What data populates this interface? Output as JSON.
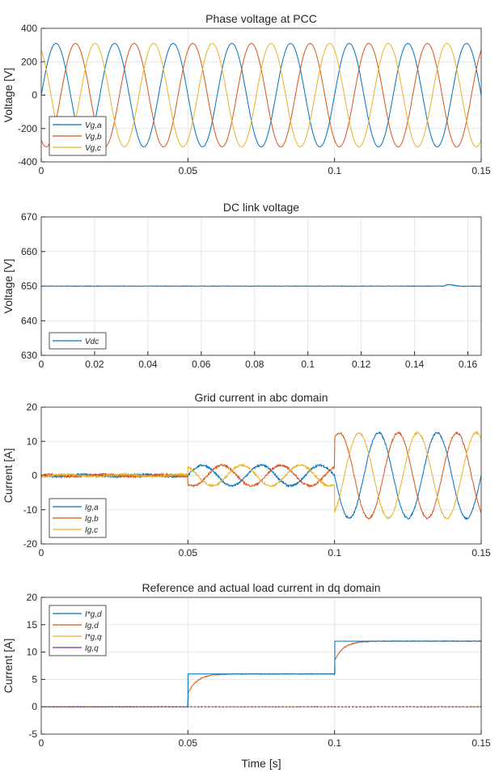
{
  "chart_data": [
    {
      "type": "line",
      "title": "Phase voltage at PCC",
      "ylabel": "Voltage [V]",
      "xlabel": "",
      "xlim": [
        0,
        0.15
      ],
      "ylim": [
        -400,
        400
      ],
      "xticks": [
        0,
        0.05,
        0.1,
        0.15
      ],
      "xtick_labels": [
        "0",
        "0.05",
        "0.1",
        "0.15"
      ],
      "yticks": [
        400,
        200,
        0,
        -200,
        -400
      ],
      "ytick_labels": [
        "400",
        "200",
        "0",
        "-200",
        "-400"
      ],
      "grid": true,
      "legend_position": "bottom-left",
      "series": [
        {
          "name": "V_g,a",
          "label": "Vg,a",
          "color": "#0072BD",
          "model": "sine",
          "amplitude": 310,
          "frequency_hz": 50,
          "phase_deg": 0
        },
        {
          "name": "V_g,b",
          "label": "Vg,b",
          "color": "#D95319",
          "model": "sine",
          "amplitude": 310,
          "frequency_hz": 50,
          "phase_deg": -120
        },
        {
          "name": "V_g,c",
          "label": "Vg,c",
          "color": "#EDB120",
          "model": "sine",
          "amplitude": 310,
          "frequency_hz": 50,
          "phase_deg": 120
        }
      ]
    },
    {
      "type": "line",
      "title": "DC link voltage",
      "ylabel": "Voltage [V]",
      "xlabel": "",
      "xlim": [
        0,
        0.165
      ],
      "ylim": [
        630,
        670
      ],
      "xticks": [
        0,
        0.02,
        0.04,
        0.06,
        0.08,
        0.1,
        0.12,
        0.14,
        0.16
      ],
      "xtick_labels": [
        "0",
        "0.02",
        "0.04",
        "0.06",
        "0.08",
        "0.1",
        "0.12",
        "0.14",
        "0.16"
      ],
      "yticks": [
        670,
        660,
        650,
        640,
        630
      ],
      "ytick_labels": [
        "670",
        "660",
        "650",
        "640",
        "630"
      ],
      "grid": true,
      "legend_position": "bottom-left",
      "series": [
        {
          "name": "V_dc",
          "label": "Vdc",
          "color": "#0072BD",
          "model": "constant",
          "value": 650,
          "transient": {
            "t": 0.151,
            "peak": 651
          }
        }
      ]
    },
    {
      "type": "line",
      "title": "Grid current in abc domain",
      "ylabel": "Current [A]",
      "xlabel": "",
      "xlim": [
        0,
        0.15
      ],
      "ylim": [
        -20,
        20
      ],
      "xticks": [
        0,
        0.05,
        0.1,
        0.15
      ],
      "xtick_labels": [
        "0",
        "0.05",
        "0.1",
        "0.15"
      ],
      "yticks": [
        20,
        10,
        0,
        -10,
        -20
      ],
      "ytick_labels": [
        "20",
        "10",
        "0",
        "-10",
        "-20"
      ],
      "grid": true,
      "legend_position": "bottom-left",
      "segments": [
        {
          "t_start": 0,
          "t_end": 0.05,
          "amplitude": 0.3
        },
        {
          "t_start": 0.05,
          "t_end": 0.1,
          "amplitude": 3
        },
        {
          "t_start": 0.1,
          "t_end": 0.15,
          "amplitude": 12.5
        }
      ],
      "series": [
        {
          "name": "I_g,a",
          "label": "Ig,a",
          "color": "#0072BD",
          "model": "sine",
          "frequency_hz": 50,
          "phase_deg": 180
        },
        {
          "name": "I_g,b",
          "label": "Ig,b",
          "color": "#D95319",
          "model": "sine",
          "frequency_hz": 50,
          "phase_deg": 60
        },
        {
          "name": "I_g,c",
          "label": "Ig,c",
          "color": "#EDB120",
          "model": "sine",
          "frequency_hz": 50,
          "phase_deg": -60
        }
      ]
    },
    {
      "type": "line",
      "title": "Reference and actual load current in dq domain",
      "ylabel": "Current [A]",
      "xlabel": "Time [s]",
      "xlim": [
        0,
        0.15
      ],
      "ylim": [
        -5,
        20
      ],
      "xticks": [
        0,
        0.05,
        0.1,
        0.15
      ],
      "xtick_labels": [
        "0",
        "0.05",
        "0.1",
        "0.15"
      ],
      "yticks": [
        20,
        15,
        10,
        5,
        0,
        -5
      ],
      "ytick_labels": [
        "20",
        "15",
        "10",
        "5",
        "0",
        "-5"
      ],
      "grid": true,
      "legend_position": "top-left",
      "series": [
        {
          "name": "I*_g,d",
          "label": "I*g,d",
          "color": "#0072BD",
          "model": "step",
          "steps": [
            [
              0,
              0
            ],
            [
              0.05,
              6
            ],
            [
              0.1,
              12
            ]
          ]
        },
        {
          "name": "I_g,d",
          "label": "Ig,d",
          "color": "#D95319",
          "model": "first_order",
          "steps": [
            [
              0,
              0
            ],
            [
              0.05,
              6
            ],
            [
              0.1,
              12
            ]
          ],
          "tau_s": 0.003
        },
        {
          "name": "I*_g,q",
          "label": "I*g,q",
          "color": "#EDB120",
          "model": "constant",
          "value": 0
        },
        {
          "name": "I_g,q",
          "label": "Ig,q",
          "color": "#7E2F8E",
          "model": "constant",
          "value": 0
        }
      ]
    }
  ]
}
